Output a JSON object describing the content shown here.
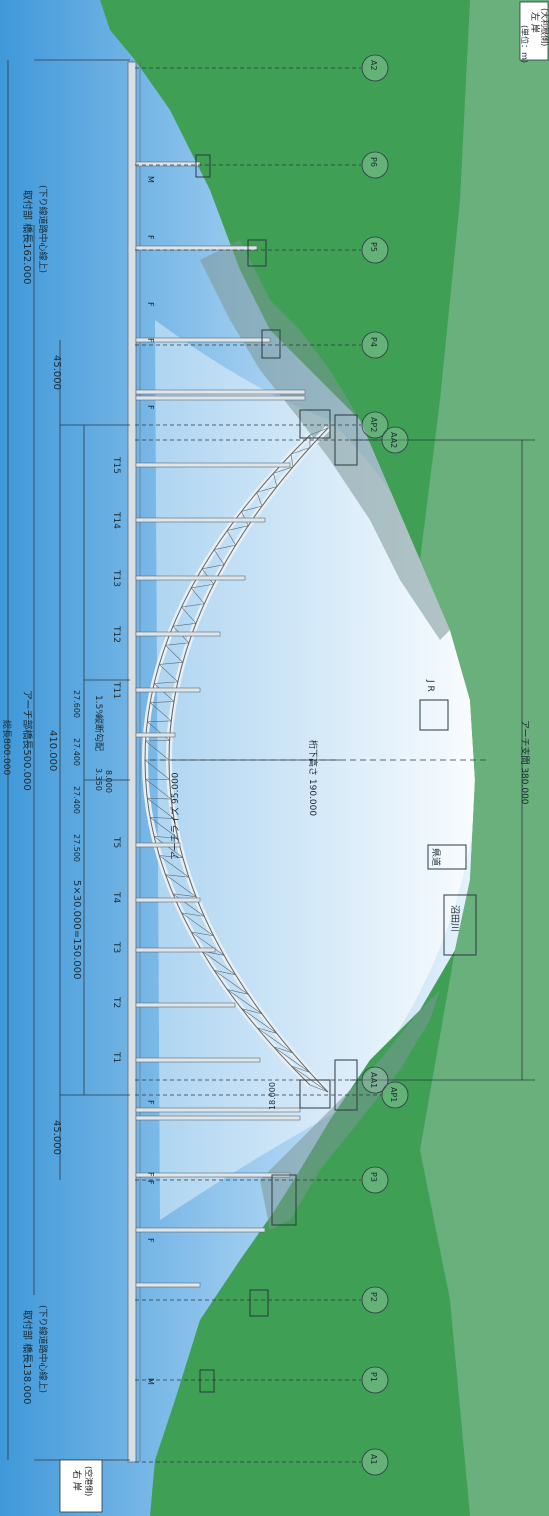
{
  "title_dimension": "総長800.000",
  "banks": {
    "left": [
      "左 岸",
      "(大利根側)"
    ],
    "right": [
      "右 岸",
      "(空港側)"
    ]
  },
  "sections": {
    "approach_left": [
      "取付部 橋長162.000",
      "(下り線道路中心線上)"
    ],
    "arch_bridge": "アーチ部橋長500.000",
    "approach_right": [
      "取付部 橋長138.000",
      "(下り線道路中心線上)"
    ]
  },
  "dimensions": {
    "span_410": "410.000",
    "span_45_top": "45.000",
    "span_45_bottom": "45.000",
    "panels": "5×30.000=150.000",
    "panel_vals": [
      "27.600",
      "27.400",
      "27.400",
      "27.500"
    ],
    "slope": "縦断勾配",
    "slope_val": "1.5%",
    "rise": "アーチライズ 95.000",
    "clearance": "桁下高さ 190.000",
    "crown_a": "3.350",
    "crown_b": "8.000",
    "arch_span": "アーチ支間 380.000",
    "arch_depth": "18.000",
    "unit": "(単位：m)"
  },
  "piers": [
    "A2",
    "P6",
    "P5",
    "P4",
    "AP2",
    "AA2",
    "AA1",
    "AP1",
    "P3",
    "P2",
    "P1",
    "A1"
  ],
  "hangers": [
    "T15",
    "T14",
    "T13",
    "T12",
    "T11",
    "T5",
    "T4",
    "T3",
    "T2",
    "T1"
  ],
  "bearings": [
    "M",
    "F",
    "F",
    "F",
    "F",
    "F",
    "F",
    "F",
    "F",
    "M"
  ],
  "features": {
    "jr": "J R",
    "road": "県道",
    "river": "沼田川"
  },
  "colors": {
    "sky_top": "#3f98d9",
    "sky_bottom": "#e8f3fb",
    "ground": "#3e9f55",
    "ground_light": "#69b07c",
    "shadow": "#7b9797",
    "arch": "#c8d2d9"
  }
}
